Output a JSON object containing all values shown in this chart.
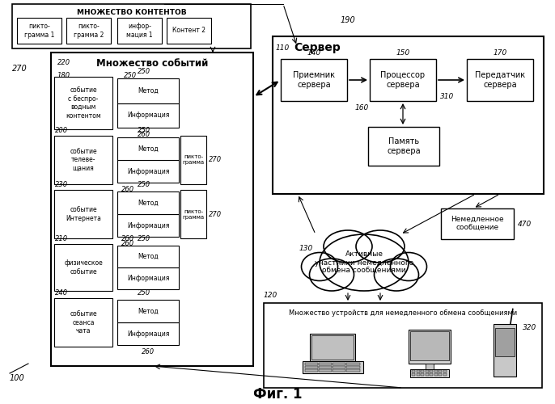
{
  "title": "Фиг. 1",
  "bg_color": "#ffffff",
  "content_set_label": "МНОЖЕСТВО КОНТЕНТОВ",
  "server_label": "Сервер",
  "memory_label": "Память\nсервера",
  "receiver_label": "Приемник\nсервера",
  "processor_label": "Процессор\nсервера",
  "transmitter_label": "Передатчик\nсервера",
  "events_label": "Множество событий",
  "event1": "событие\nс беспро-\nводным\nконтентом",
  "event2": "событие\nтелеве-\nщания",
  "event3": "событие\nИнтернета",
  "event4": "физическое\nсобытие",
  "event5": "событие\nсеанса\nчата",
  "info_label": "Информация",
  "method_label": "Метод",
  "pictogram_label": "пикто-\nграмма",
  "cloud_text": "Активные\nучастники немедленного\nобмена сообщениями",
  "devices_text": "Множество устройств для немедленного обмена сообщениями",
  "immediate_msg": "Немедленное\nсообщение",
  "content_items": [
    "пикто-\nграмма 1",
    "пикто-\nграмма 2",
    "инфор-\nмация 1",
    "Контент 2"
  ]
}
